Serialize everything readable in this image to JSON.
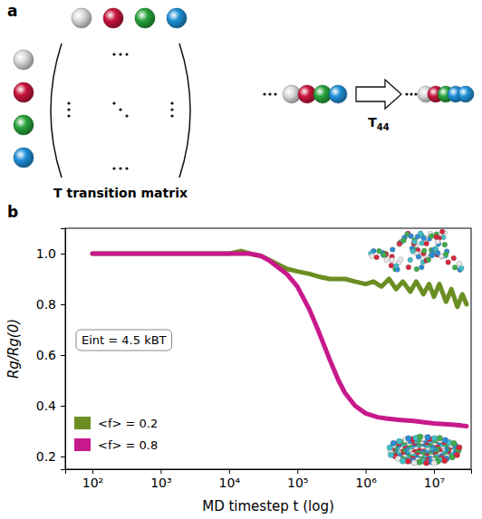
{
  "figure": {
    "panel_labels": [
      "a",
      "b"
    ]
  },
  "diagram": {
    "matrix_symbol": "T",
    "matrix_caption": "transition matrix",
    "arrow_symbol": "T",
    "arrow_subscript": "44",
    "bead_colors": [
      "#d9d9d9",
      "#c8143c",
      "#27a33a",
      "#1f8fd6"
    ]
  },
  "chart_data": {
    "type": "line",
    "xlabel": "MD timestep t (log)",
    "ylabel": "Rg/Rg(0)",
    "annotations": [
      "Eint = 4.5 kBT"
    ],
    "log": "x",
    "grid": false,
    "legend": "lower left",
    "xlim": [
      40,
      35000000
    ],
    "xticks": [
      {
        "value": 100,
        "label": "10²"
      },
      {
        "value": 1000,
        "label": "10³"
      },
      {
        "value": 10000,
        "label": "10⁴"
      },
      {
        "value": 100000,
        "label": "10⁵"
      },
      {
        "value": 1000000,
        "label": "10⁶"
      },
      {
        "value": 10000000,
        "label": "10⁷"
      }
    ],
    "ylim": [
      0.15,
      1.1
    ],
    "yticks": [
      0.2,
      0.4,
      0.6,
      0.8,
      {
        "value": 1,
        "label": "1.0"
      }
    ],
    "series": [
      {
        "name": "<f> = 0.2",
        "color": "#6b8e23",
        "x": [
          100,
          300,
          1000,
          3000,
          10000,
          15000,
          20000,
          30000,
          50000,
          70000,
          100000,
          150000,
          200000,
          300000,
          500000,
          700000,
          1000000,
          1300000,
          1700000,
          2200000,
          2800000,
          3500000,
          4500000,
          5500000,
          7000000,
          8500000,
          10000000,
          12000000,
          15000000,
          18000000,
          22000000,
          26000000,
          30000000
        ],
        "values": [
          1.0,
          1.0,
          1.0,
          1.0,
          1.0,
          1.01,
          1.0,
          0.99,
          0.96,
          0.94,
          0.93,
          0.92,
          0.91,
          0.9,
          0.9,
          0.89,
          0.88,
          0.89,
          0.87,
          0.9,
          0.86,
          0.89,
          0.85,
          0.89,
          0.84,
          0.88,
          0.83,
          0.88,
          0.81,
          0.86,
          0.79,
          0.84,
          0.8
        ]
      },
      {
        "name": "<f> = 0.8",
        "color": "#c8198c",
        "x": [
          100,
          1000,
          10000,
          20000,
          30000,
          40000,
          50000,
          70000,
          100000,
          150000,
          200000,
          300000,
          400000,
          500000,
          700000,
          1000000,
          1500000,
          2000000,
          3000000,
          5000000,
          10000000,
          20000000,
          30000000
        ],
        "values": [
          1.0,
          1.0,
          1.0,
          1.0,
          0.99,
          0.97,
          0.95,
          0.92,
          0.87,
          0.78,
          0.7,
          0.58,
          0.5,
          0.45,
          0.4,
          0.37,
          0.355,
          0.35,
          0.345,
          0.34,
          0.33,
          0.325,
          0.32
        ]
      }
    ]
  }
}
